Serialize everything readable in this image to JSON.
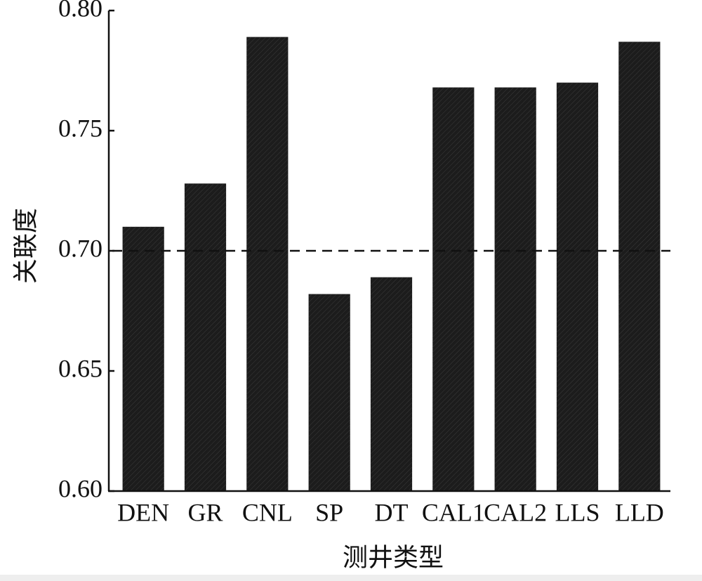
{
  "chart_data": {
    "type": "bar",
    "x_label": "测井类型",
    "y_label": "关联度",
    "categories": [
      "DEN",
      "GR",
      "CNL",
      "SP",
      "DT",
      "CAL1",
      "CAL2",
      "LLS",
      "LLD"
    ],
    "values": [
      0.71,
      0.728,
      0.789,
      0.682,
      0.689,
      0.768,
      0.768,
      0.77,
      0.787
    ],
    "color": "#1c1c1c",
    "ylim": [
      0.6,
      0.8
    ],
    "yticks": [
      {
        "value": 0.6,
        "label": "0.60"
      },
      {
        "value": 0.65,
        "label": "0.65"
      },
      {
        "value": 0.7,
        "label": "0.70"
      },
      {
        "value": 0.75,
        "label": "0.75"
      },
      {
        "value": 0.8,
        "label": "0.80"
      }
    ],
    "reference_line": 0.7,
    "grid": false
  }
}
